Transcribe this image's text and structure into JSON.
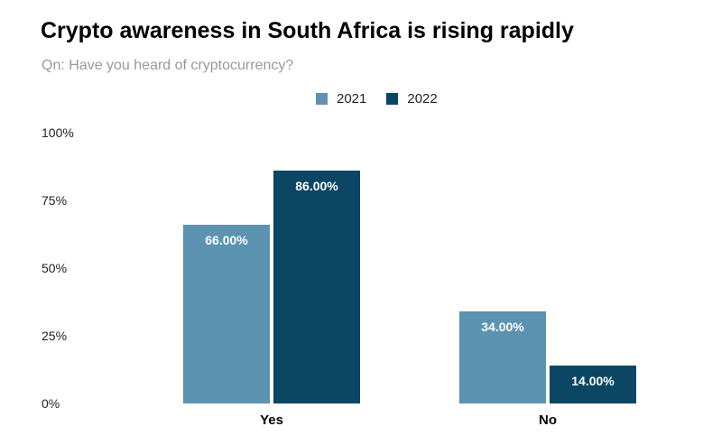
{
  "chart_data": {
    "type": "bar",
    "title": "Crypto awareness in South Africa is rising rapidly",
    "subtitle": "Qn: Have you heard of cryptocurrency?",
    "categories": [
      "Yes",
      "No"
    ],
    "series": [
      {
        "name": "2021",
        "values": [
          66,
          34
        ],
        "labels": [
          "66.00%",
          "34.00%"
        ],
        "color": "#5b93b1"
      },
      {
        "name": "2022",
        "values": [
          86,
          14
        ],
        "labels": [
          "86.00%",
          "14.00%"
        ],
        "color": "#0b4764"
      }
    ],
    "yticks": [
      0,
      25,
      50,
      75,
      100
    ],
    "ytick_labels": [
      "0%",
      "25%",
      "50%",
      "75%",
      "100%"
    ],
    "ylim": [
      0,
      100
    ],
    "xlabel": "",
    "ylabel": "",
    "legend_position": "top-center",
    "grid": false
  }
}
